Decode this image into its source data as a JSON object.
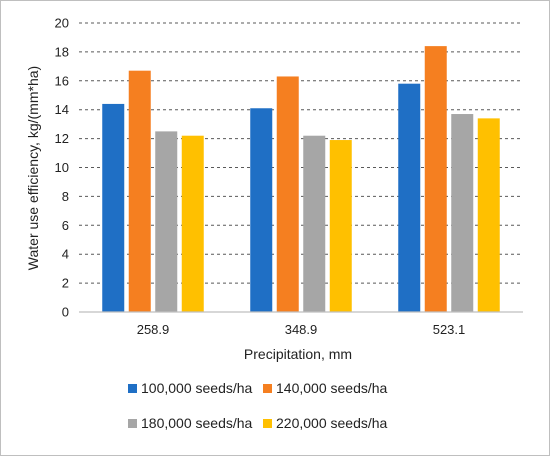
{
  "chart_data": {
    "type": "bar",
    "title": "",
    "xlabel": "Precipitation, mm",
    "ylabel": "Water use efficiency, kg/(mm*ha)",
    "categories": [
      "258.9",
      "348.9",
      "523.1"
    ],
    "ylim": [
      0,
      20
    ],
    "yticks": [
      0,
      2,
      4,
      6,
      8,
      10,
      12,
      14,
      16,
      18,
      20
    ],
    "grid": true,
    "legend_position": "bottom",
    "series": [
      {
        "name": "100,000 seeds/ha",
        "color": "#1f6fc5",
        "values": [
          14.4,
          14.1,
          15.8
        ]
      },
      {
        "name": "140,000 seeds/ha",
        "color": "#f57f20",
        "values": [
          16.7,
          16.3,
          18.4
        ]
      },
      {
        "name": "180,000 seeds/ha",
        "color": "#a6a6a6",
        "values": [
          12.5,
          12.2,
          13.7
        ]
      },
      {
        "name": "220,000 seeds/ha",
        "color": "#ffc000",
        "values": [
          12.2,
          11.9,
          13.4
        ]
      }
    ]
  }
}
